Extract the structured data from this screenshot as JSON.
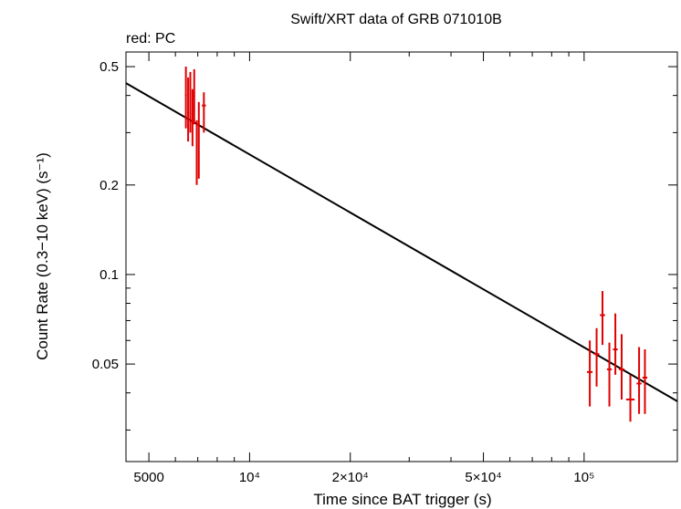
{
  "chart_data": {
    "type": "scatter",
    "title": "Swift/XRT data of GRB 071010B",
    "subtitle": "red: PC",
    "xlabel": "Time since BAT trigger (s)",
    "ylabel": "Count Rate (0.3−10 keV) (s⁻¹)",
    "xscale": "log",
    "yscale": "log",
    "xlim": [
      4270,
      190000
    ],
    "ylim": [
      0.0235,
      0.56
    ],
    "x_ticks": [
      {
        "value": 5000,
        "label": "5000"
      },
      {
        "value": 10000,
        "label": "10⁴"
      },
      {
        "value": 20000,
        "label": "2×10⁴"
      },
      {
        "value": 50000,
        "label": "5×10⁴"
      },
      {
        "value": 100000,
        "label": "10⁵"
      }
    ],
    "y_ticks": [
      {
        "value": 0.05,
        "label": "0.05"
      },
      {
        "value": 0.1,
        "label": "0.1"
      },
      {
        "value": 0.2,
        "label": "0.2"
      },
      {
        "value": 0.5,
        "label": "0.5"
      }
    ],
    "grid": false,
    "colors": {
      "data": "#e00000",
      "model": "#000000"
    },
    "series": [
      {
        "mode": "PC",
        "points": [
          {
            "x": 6450,
            "xerr": [
              40,
              40
            ],
            "y": 0.4,
            "ylo": 0.31,
            "yhi": 0.5
          },
          {
            "x": 6550,
            "xerr": [
              40,
              40
            ],
            "y": 0.35,
            "ylo": 0.28,
            "yhi": 0.46
          },
          {
            "x": 6650,
            "xerr": [
              40,
              40
            ],
            "y": 0.38,
            "ylo": 0.3,
            "yhi": 0.48
          },
          {
            "x": 6750,
            "xerr": [
              40,
              40
            ],
            "y": 0.32,
            "ylo": 0.27,
            "yhi": 0.42
          },
          {
            "x": 6830,
            "xerr": [
              40,
              40
            ],
            "y": 0.4,
            "ylo": 0.32,
            "yhi": 0.49
          },
          {
            "x": 6950,
            "xerr": [
              40,
              40
            ],
            "y": 0.265,
            "ylo": 0.2,
            "yhi": 0.33
          },
          {
            "x": 7050,
            "xerr": [
              50,
              50
            ],
            "y": 0.32,
            "ylo": 0.21,
            "yhi": 0.38
          },
          {
            "x": 7300,
            "xerr": [
              100,
              100
            ],
            "y": 0.37,
            "ylo": 0.3,
            "yhi": 0.41
          },
          {
            "x": 104000,
            "xerr": [
              2000,
              2000
            ],
            "y": 0.047,
            "ylo": 0.036,
            "yhi": 0.06
          },
          {
            "x": 109000,
            "xerr": [
              2000,
              2000
            ],
            "y": 0.054,
            "ylo": 0.042,
            "yhi": 0.066
          },
          {
            "x": 113500,
            "xerr": [
              2000,
              2000
            ],
            "y": 0.073,
            "ylo": 0.058,
            "yhi": 0.088
          },
          {
            "x": 119000,
            "xerr": [
              2000,
              2000
            ],
            "y": 0.048,
            "ylo": 0.036,
            "yhi": 0.059
          },
          {
            "x": 124000,
            "xerr": [
              2000,
              2000
            ],
            "y": 0.056,
            "ylo": 0.046,
            "yhi": 0.074
          },
          {
            "x": 129500,
            "xerr": [
              2500,
              2500
            ],
            "y": 0.048,
            "ylo": 0.038,
            "yhi": 0.063
          },
          {
            "x": 137500,
            "xerr": [
              4000,
              4000
            ],
            "y": 0.038,
            "ylo": 0.032,
            "yhi": 0.046
          },
          {
            "x": 146000,
            "xerr": [
              2500,
              2500
            ],
            "y": 0.043,
            "ylo": 0.034,
            "yhi": 0.057
          },
          {
            "x": 152000,
            "xerr": [
              2500,
              2500
            ],
            "y": 0.045,
            "ylo": 0.034,
            "yhi": 0.056
          }
        ]
      }
    ],
    "model": {
      "type": "power-law",
      "x": [
        4270,
        190000
      ],
      "y": [
        0.44,
        0.0375
      ]
    }
  }
}
